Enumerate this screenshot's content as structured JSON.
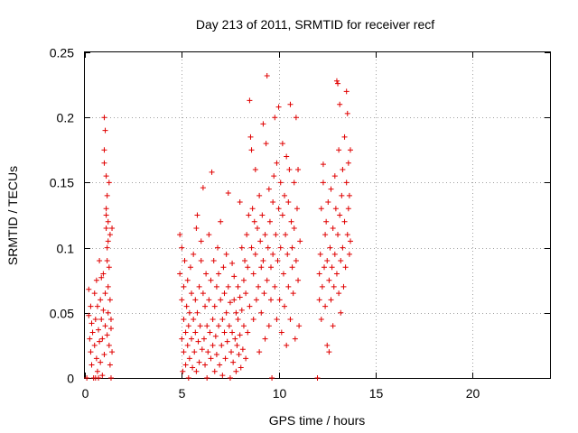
{
  "chart_data": {
    "type": "scatter",
    "title": "Day 213 of 2011, SRMTID for receiver recf",
    "xlabel": "GPS time / hours",
    "ylabel": "SRMTID / TECUs",
    "xlim": [
      0,
      24
    ],
    "ylim": [
      0,
      0.25
    ],
    "x_ticks": [
      0,
      5,
      10,
      15,
      20
    ],
    "x_tick_labels": [
      "0",
      "5",
      "10",
      "15",
      "20"
    ],
    "y_ticks": [
      0,
      0.05,
      0.1,
      0.15,
      0.2,
      0.25
    ],
    "y_tick_labels": [
      "0",
      "0.05",
      "0.1",
      "0.15",
      "0.2",
      "0.25"
    ],
    "grid": true,
    "marker": "+",
    "marker_color": "#e00000",
    "series": [
      {
        "name": "SRMTID",
        "points": [
          [
            0.1,
            0.0
          ],
          [
            0.2,
            0.068
          ],
          [
            0.2,
            0.048
          ],
          [
            0.25,
            0.03
          ],
          [
            0.3,
            0.02
          ],
          [
            0.3,
            0.055
          ],
          [
            0.35,
            0.042
          ],
          [
            0.35,
            0.01
          ],
          [
            0.4,
            0.035
          ],
          [
            0.45,
            0.0
          ],
          [
            0.5,
            0.065
          ],
          [
            0.5,
            0.025
          ],
          [
            0.55,
            0.045
          ],
          [
            0.6,
            0.015
          ],
          [
            0.6,
            0.075
          ],
          [
            0.65,
            0.005
          ],
          [
            0.65,
            0.055
          ],
          [
            0.7,
            0.037
          ],
          [
            0.7,
            0.0
          ],
          [
            0.75,
            0.028
          ],
          [
            0.8,
            0.06
          ],
          [
            0.8,
            0.012
          ],
          [
            0.85,
            0.045
          ],
          [
            0.85,
            0.077
          ],
          [
            0.9,
            0.03
          ],
          [
            0.9,
            0.002
          ],
          [
            0.95,
            0.052
          ],
          [
            1.0,
            0.2
          ],
          [
            1.0,
            0.018
          ],
          [
            1.0,
            0.175
          ],
          [
            1.05,
            0.19
          ],
          [
            1.05,
            0.065
          ],
          [
            1.05,
            0.04
          ],
          [
            1.1,
            0.13
          ],
          [
            1.1,
            0.125
          ],
          [
            1.1,
            0.155
          ],
          [
            1.1,
            0.115
          ],
          [
            1.15,
            0.1
          ],
          [
            1.15,
            0.09
          ],
          [
            1.15,
            0.033
          ],
          [
            1.2,
            0.12
          ],
          [
            1.2,
            0.105
          ],
          [
            1.2,
            0.07
          ],
          [
            1.25,
            0.15
          ],
          [
            1.25,
            0.025
          ],
          [
            1.25,
            0.085
          ],
          [
            1.3,
            0.11
          ],
          [
            1.3,
            0.06
          ],
          [
            1.3,
            0.01
          ],
          [
            1.35,
            0.045
          ],
          [
            1.35,
            0.038
          ],
          [
            1.4,
            0.115
          ],
          [
            1.4,
            0.02
          ],
          [
            0.75,
            0.09
          ],
          [
            0.95,
            0.08
          ],
          [
            1.15,
            0.14
          ],
          [
            1.0,
            0.165
          ],
          [
            1.2,
            0.05
          ],
          [
            0.55,
            0.0
          ],
          [
            1.35,
            0.0
          ],
          [
            4.9,
            0.11
          ],
          [
            4.9,
            0.08
          ],
          [
            5.0,
            0.1
          ],
          [
            5.0,
            0.06
          ],
          [
            5.0,
            0.03
          ],
          [
            5.05,
            0.005
          ],
          [
            5.1,
            0.045
          ],
          [
            5.1,
            0.02
          ],
          [
            5.1,
            0.07
          ],
          [
            5.15,
            0.09
          ],
          [
            5.2,
            0.035
          ],
          [
            5.2,
            0.01
          ],
          [
            5.25,
            0.055
          ],
          [
            5.3,
            0.025
          ],
          [
            5.3,
            0.075
          ],
          [
            5.35,
            0.04
          ],
          [
            5.35,
            0.0
          ],
          [
            5.4,
            0.015
          ],
          [
            5.4,
            0.05
          ],
          [
            5.45,
            0.085
          ],
          [
            5.5,
            0.03
          ],
          [
            5.5,
            0.065
          ],
          [
            5.55,
            0.008
          ],
          [
            5.6,
            0.045
          ],
          [
            5.6,
            0.095
          ],
          [
            5.65,
            0.02
          ],
          [
            5.7,
            0.06
          ],
          [
            5.7,
            0.035
          ],
          [
            5.75,
            0.115
          ],
          [
            5.75,
            0.005
          ],
          [
            5.8,
            0.125
          ],
          [
            5.8,
            0.05
          ],
          [
            5.85,
            0.028
          ],
          [
            5.9,
            0.07
          ],
          [
            5.9,
            0.012
          ],
          [
            5.95,
            0.04
          ],
          [
            6.0,
            0.105
          ],
          [
            6.0,
            0.09
          ],
          [
            6.05,
            0.022
          ],
          [
            6.1,
            0.065
          ],
          [
            6.1,
            0.146
          ],
          [
            6.15,
            0.03
          ],
          [
            6.2,
            0.01
          ],
          [
            6.2,
            0.055
          ],
          [
            6.25,
            0.08
          ],
          [
            6.3,
            0.04
          ],
          [
            6.3,
            0.0
          ],
          [
            6.35,
            0.02
          ],
          [
            6.4,
            0.06
          ],
          [
            6.4,
            0.11
          ],
          [
            6.45,
            0.035
          ],
          [
            6.5,
            0.075
          ],
          [
            6.5,
            0.015
          ],
          [
            6.55,
            0.158
          ],
          [
            6.6,
            0.045
          ],
          [
            6.6,
            0.025
          ],
          [
            6.65,
            0.09
          ],
          [
            6.7,
            0.005
          ],
          [
            6.7,
            0.055
          ],
          [
            6.75,
            0.032
          ],
          [
            6.8,
            0.07
          ],
          [
            6.8,
            0.018
          ],
          [
            6.85,
            0.1
          ],
          [
            6.9,
            0.04
          ],
          [
            6.9,
            0.08
          ],
          [
            6.95,
            0.01
          ],
          [
            7.0,
            0.06
          ],
          [
            7.0,
            0.12
          ],
          [
            7.05,
            0.025
          ],
          [
            7.1,
            0.045
          ],
          [
            7.1,
            0.002
          ],
          [
            7.15,
            0.085
          ],
          [
            7.2,
            0.035
          ],
          [
            7.2,
            0.065
          ],
          [
            7.25,
            0.015
          ],
          [
            7.3,
            0.05
          ],
          [
            7.3,
            0.095
          ],
          [
            7.35,
            0.028
          ],
          [
            7.4,
            0.07
          ],
          [
            7.4,
            0.142
          ],
          [
            7.45,
            0.04
          ],
          [
            7.5,
            0.0
          ],
          [
            7.5,
            0.058
          ],
          [
            7.55,
            0.02
          ],
          [
            7.6,
            0.088
          ],
          [
            7.6,
            0.035
          ],
          [
            7.65,
            0.012
          ],
          [
            7.7,
            0.06
          ],
          [
            7.7,
            0.078
          ],
          [
            7.75,
            0.03
          ],
          [
            7.8,
            0.05
          ],
          [
            7.8,
            0.005
          ],
          [
            7.85,
            0.025
          ],
          [
            7.9,
            0.07
          ],
          [
            7.9,
            0.045
          ],
          [
            7.95,
            0.018
          ],
          [
            8.0,
            0.062
          ],
          [
            8.0,
            0.135
          ],
          [
            8.0,
            0.033
          ],
          [
            8.05,
            0.008
          ],
          [
            8.1,
            0.1
          ],
          [
            8.1,
            0.052
          ],
          [
            8.15,
            0.022
          ],
          [
            8.2,
            0.075
          ],
          [
            8.2,
            0.04
          ],
          [
            8.25,
            0.09
          ],
          [
            8.3,
            0.015
          ],
          [
            8.3,
            0.065
          ],
          [
            8.35,
            0.11
          ],
          [
            8.4,
            0.085
          ],
          [
            8.4,
            0.035
          ],
          [
            8.45,
            0.125
          ],
          [
            8.5,
            0.213
          ],
          [
            8.5,
            0.055
          ],
          [
            8.55,
            0.185
          ],
          [
            8.6,
            0.175
          ],
          [
            8.6,
            0.1
          ],
          [
            8.65,
            0.13
          ],
          [
            8.7,
            0.08
          ],
          [
            8.7,
            0.045
          ],
          [
            8.75,
            0.12
          ],
          [
            8.8,
            0.16
          ],
          [
            8.8,
            0.095
          ],
          [
            8.85,
            0.06
          ],
          [
            8.9,
            0.115
          ],
          [
            8.95,
            0.07
          ],
          [
            9.0,
            0.14
          ],
          [
            9.0,
            0.02
          ],
          [
            9.05,
            0.105
          ],
          [
            9.1,
            0.085
          ],
          [
            9.1,
            0.05
          ],
          [
            9.15,
            0.125
          ],
          [
            9.2,
            0.09
          ],
          [
            9.2,
            0.195
          ],
          [
            9.25,
            0.065
          ],
          [
            9.3,
            0.11
          ],
          [
            9.3,
            0.03
          ],
          [
            9.35,
            0.18
          ],
          [
            9.4,
            0.232
          ],
          [
            9.4,
            0.075
          ],
          [
            9.45,
            0.1
          ],
          [
            9.5,
            0.145
          ],
          [
            9.5,
            0.04
          ],
          [
            9.55,
            0.12
          ],
          [
            9.6,
            0.085
          ],
          [
            9.6,
            0.06
          ],
          [
            9.65,
            0.0
          ],
          [
            9.7,
            0.135
          ],
          [
            9.7,
            0.095
          ],
          [
            9.75,
            0.155
          ],
          [
            9.8,
            0.2
          ],
          [
            9.8,
            0.07
          ],
          [
            9.85,
            0.11
          ],
          [
            9.9,
            0.165
          ],
          [
            9.9,
            0.045
          ],
          [
            9.95,
            0.09
          ],
          [
            10.0,
            0.208
          ],
          [
            10.0,
            0.13
          ],
          [
            10.05,
            0.06
          ],
          [
            10.1,
            0.15
          ],
          [
            10.1,
            0.1
          ],
          [
            10.15,
            0.035
          ],
          [
            10.2,
            0.125
          ],
          [
            10.2,
            0.18
          ],
          [
            10.25,
            0.08
          ],
          [
            10.3,
            0.14
          ],
          [
            10.3,
            0.055
          ],
          [
            10.35,
            0.11
          ],
          [
            10.4,
            0.17
          ],
          [
            10.4,
            0.025
          ],
          [
            10.45,
            0.095
          ],
          [
            10.5,
            0.135
          ],
          [
            10.5,
            0.07
          ],
          [
            10.55,
            0.16
          ],
          [
            10.6,
            0.21
          ],
          [
            10.6,
            0.045
          ],
          [
            10.65,
            0.12
          ],
          [
            10.7,
            0.085
          ],
          [
            10.7,
            0.1
          ],
          [
            10.75,
            0.065
          ],
          [
            10.8,
            0.15
          ],
          [
            10.8,
            0.115
          ],
          [
            10.85,
            0.03
          ],
          [
            10.9,
            0.09
          ],
          [
            10.9,
            0.2
          ],
          [
            10.95,
            0.13
          ],
          [
            11.0,
            0.075
          ],
          [
            11.0,
            0.16
          ],
          [
            11.05,
            0.04
          ],
          [
            11.1,
            0.105
          ],
          [
            12.0,
            0.0
          ],
          [
            12.1,
            0.06
          ],
          [
            12.1,
            0.08
          ],
          [
            12.15,
            0.095
          ],
          [
            12.2,
            0.045
          ],
          [
            12.2,
            0.13
          ],
          [
            12.25,
            0.07
          ],
          [
            12.3,
            0.15
          ],
          [
            12.3,
            0.164
          ],
          [
            12.35,
            0.085
          ],
          [
            12.4,
            0.11
          ],
          [
            12.4,
            0.055
          ],
          [
            12.45,
            0.12
          ],
          [
            12.5,
            0.025
          ],
          [
            12.5,
            0.09
          ],
          [
            12.55,
            0.135
          ],
          [
            12.6,
            0.075
          ],
          [
            12.6,
            0.02
          ],
          [
            12.65,
            0.1
          ],
          [
            12.7,
            0.06
          ],
          [
            12.7,
            0.145
          ],
          [
            12.75,
            0.085
          ],
          [
            12.8,
            0.115
          ],
          [
            12.8,
            0.04
          ],
          [
            12.85,
            0.07
          ],
          [
            12.9,
            0.155
          ],
          [
            12.9,
            0.095
          ],
          [
            12.95,
            0.13
          ],
          [
            13.0,
            0.228
          ],
          [
            13.0,
            0.08
          ],
          [
            13.05,
            0.226
          ],
          [
            13.05,
            0.11
          ],
          [
            13.1,
            0.065
          ],
          [
            13.1,
            0.175
          ],
          [
            13.15,
            0.21
          ],
          [
            13.15,
            0.125
          ],
          [
            13.2,
            0.09
          ],
          [
            13.2,
            0.05
          ],
          [
            13.25,
            0.14
          ],
          [
            13.3,
            0.1
          ],
          [
            13.3,
            0.16
          ],
          [
            13.35,
            0.07
          ],
          [
            13.4,
            0.12
          ],
          [
            13.4,
            0.185
          ],
          [
            13.45,
            0.085
          ],
          [
            13.5,
            0.22
          ],
          [
            13.5,
            0.15
          ],
          [
            13.55,
            0.203
          ],
          [
            13.55,
            0.11
          ],
          [
            13.6,
            0.13
          ],
          [
            13.6,
            0.165
          ],
          [
            13.65,
            0.095
          ],
          [
            13.65,
            0.14
          ],
          [
            13.7,
            0.175
          ],
          [
            13.7,
            0.105
          ]
        ]
      }
    ]
  }
}
